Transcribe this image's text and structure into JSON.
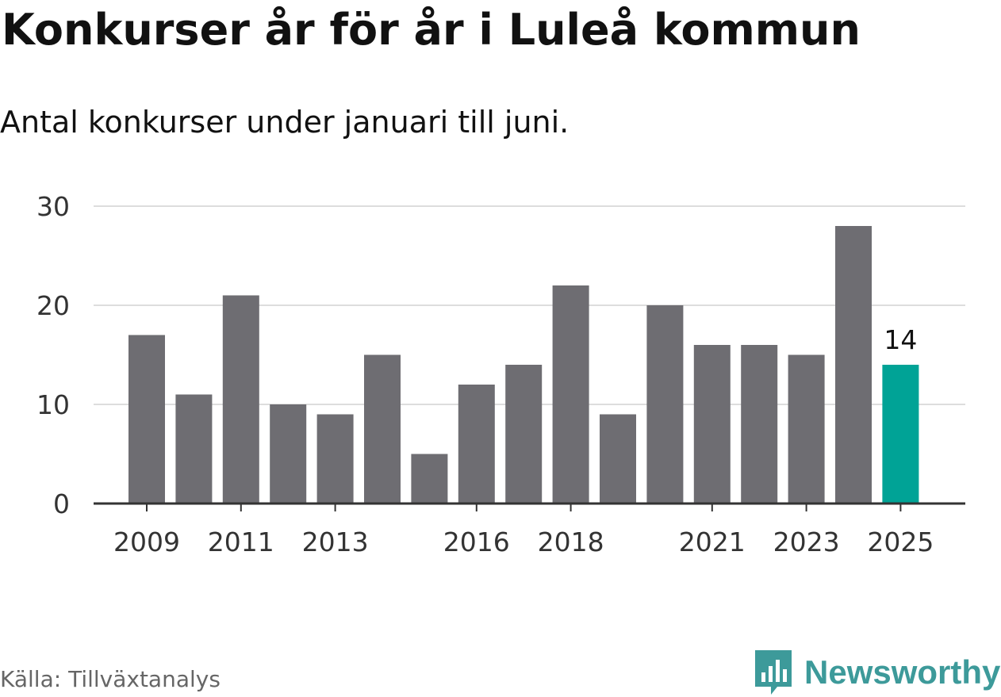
{
  "title": "Konkurser år för år i Luleå kommun",
  "subtitle": "Antal konkurser under januari till juni.",
  "source": "Källa: Tillväxtanalys",
  "brand": {
    "name": "Newsworthy",
    "icon": "bar-chart-speech-bubble-icon",
    "color": "#3d9a9a"
  },
  "colors": {
    "bar": "#6e6d72",
    "highlight": "#00a396",
    "grid": "#dddddd",
    "axis": "#333333"
  },
  "chart_data": {
    "type": "bar",
    "title": "Konkurser år för år i Luleå kommun",
    "subtitle": "Antal konkurser under januari till juni.",
    "xlabel": "",
    "ylabel": "",
    "categories": [
      2009,
      2010,
      2011,
      2012,
      2013,
      2014,
      2015,
      2016,
      2017,
      2018,
      2019,
      2020,
      2021,
      2022,
      2023,
      2024,
      2025
    ],
    "values": [
      17,
      11,
      21,
      10,
      9,
      15,
      5,
      12,
      14,
      22,
      9,
      20,
      16,
      16,
      15,
      28,
      14
    ],
    "ylim": [
      0,
      30
    ],
    "yticks": [
      0,
      10,
      20,
      30
    ],
    "xtick_labels": [
      "2009",
      "2011",
      "2013",
      "2016",
      "2018",
      "2021",
      "2023",
      "2025"
    ],
    "highlight": {
      "category": 2025,
      "label": "14"
    },
    "grid": true,
    "legend": "none"
  }
}
